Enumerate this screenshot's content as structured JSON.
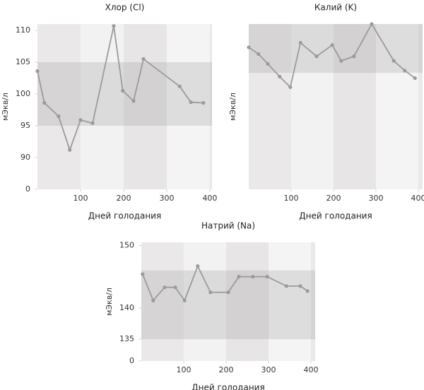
{
  "chart_data": [
    {
      "type": "line",
      "title": "Хлор (Cl)",
      "xlabel": "Дней голодания",
      "ylabel": "мЭкв/л",
      "x": [
        0,
        16,
        49,
        75,
        100,
        128,
        177,
        198,
        223,
        246,
        330,
        356,
        385
      ],
      "values": [
        103.6,
        98.6,
        96.5,
        91.2,
        95.9,
        95.4,
        110.7,
        100.5,
        98.9,
        105.5,
        101.2,
        98.7,
        98.6
      ],
      "color": "#9b9b9b",
      "xlim": [
        0,
        405
      ],
      "xticks": [
        100,
        200,
        300,
        400
      ],
      "ylim": [
        0,
        111
      ],
      "ybreak": [
        0,
        85
      ],
      "yticks": [
        0,
        90,
        95,
        100,
        105,
        110
      ],
      "normal_range": [
        95,
        105
      ]
    },
    {
      "type": "line",
      "title": "Калий (K)",
      "xlabel": "Дней голодания",
      "ylabel": "мЭкв/л",
      "x": [
        0,
        23,
        45,
        73,
        98,
        122,
        160,
        197,
        218,
        248,
        290,
        342,
        368,
        392
      ],
      "values": [
        4.89,
        4.8,
        4.67,
        4.5,
        4.36,
        4.95,
        4.77,
        4.92,
        4.71,
        4.77,
        5.2,
        4.71,
        4.58,
        4.48
      ],
      "color": "#9b9b9b",
      "xlim": [
        0,
        410
      ],
      "xticks": [
        100,
        200,
        300,
        400
      ],
      "ylim": [
        3.0,
        5.2
      ],
      "yticks": [],
      "normal_range": [
        4.55,
        5.2
      ]
    },
    {
      "type": "line",
      "title": "Натрий (Na)",
      "xlabel": "Дней голодания",
      "ylabel": "мЭкв/л",
      "x": [
        3,
        28,
        55,
        80,
        102,
        133,
        163,
        205,
        230,
        263,
        297,
        342,
        375,
        392
      ],
      "values": [
        145.4,
        141.2,
        143.3,
        143.3,
        141.2,
        146.7,
        142.5,
        142.5,
        145.0,
        145.0,
        145.0,
        143.5,
        143.5,
        142.7
      ],
      "color": "#9b9b9b",
      "xlim": [
        0,
        410
      ],
      "xticks": [
        100,
        200,
        300,
        400
      ],
      "ylim": [
        0,
        150.5
      ],
      "ybreak": [
        0,
        131.5
      ],
      "yticks": [
        0,
        135,
        140,
        150
      ],
      "normal_range": [
        135,
        146
      ]
    }
  ]
}
